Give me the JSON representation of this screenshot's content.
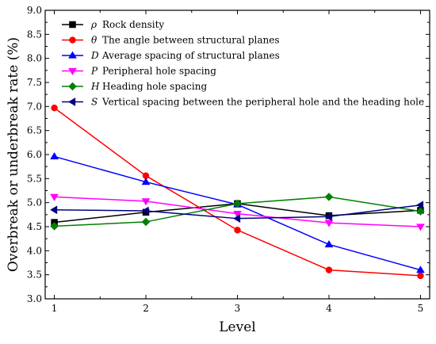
{
  "chart_data": {
    "type": "line",
    "xlabel": "Level",
    "ylabel": "Overbreak or underbreak rate (%)",
    "x": [
      1,
      2,
      3,
      4,
      5
    ],
    "xlim": [
      0.9,
      5.1
    ],
    "ylim": [
      3.0,
      9.0
    ],
    "xticks": [
      1,
      2,
      3,
      4,
      5
    ],
    "yticks": [
      "3.0",
      "3.5",
      "4.0",
      "4.5",
      "5.0",
      "5.5",
      "6.0",
      "6.5",
      "7.0",
      "7.5",
      "8.0",
      "8.5",
      "9.0"
    ],
    "grid": false,
    "legend_position": "top-left",
    "series": [
      {
        "symbol": "ρ",
        "name": "Rock density",
        "color": "#000000",
        "marker": "square",
        "values": [
          4.59,
          4.8,
          4.98,
          4.73,
          4.84
        ]
      },
      {
        "symbol": "θ",
        "name": "The angle between structural planes",
        "color": "#ff0000",
        "marker": "circle",
        "values": [
          6.97,
          5.56,
          4.43,
          3.6,
          3.48
        ]
      },
      {
        "symbol": "D",
        "name": "Average spacing of structural planes",
        "color": "#0000ff",
        "marker": "triangle-up",
        "values": [
          5.96,
          5.43,
          4.96,
          4.13,
          3.6
        ]
      },
      {
        "symbol": "P",
        "name": "Peripheral hole spacing",
        "color": "#ff00ff",
        "marker": "triangle-down",
        "values": [
          5.12,
          5.03,
          4.77,
          4.58,
          4.5
        ]
      },
      {
        "symbol": "H",
        "name": "Heading hole spacing",
        "color": "#008000",
        "marker": "diamond",
        "values": [
          4.51,
          4.6,
          4.98,
          5.12,
          4.82
        ]
      },
      {
        "symbol": "S",
        "name": "Vertical spacing between the peripheral hole and the heading hole",
        "color": "#000080",
        "marker": "triangle-left",
        "values": [
          4.85,
          4.83,
          4.67,
          4.71,
          4.95
        ]
      }
    ]
  }
}
